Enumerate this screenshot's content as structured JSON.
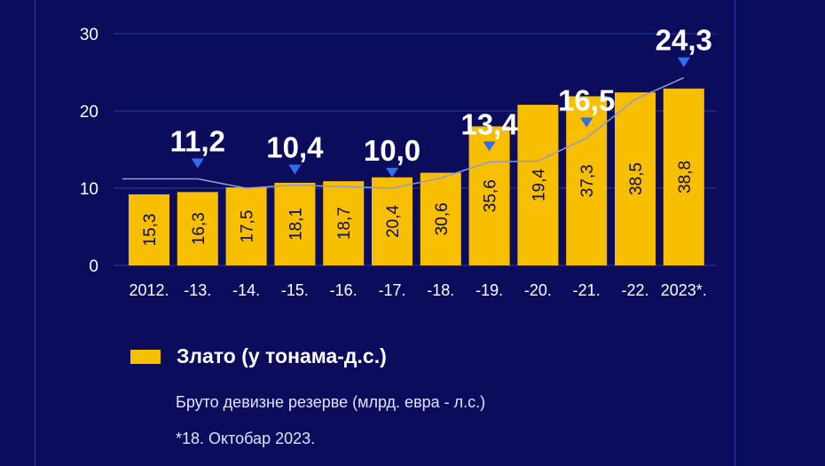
{
  "colors": {
    "background": "#0b0c5c",
    "bar": "#f8be00",
    "grid": "#2a3aa8",
    "line": "#8f9ad6",
    "marker": "#2f6cf0",
    "text": "#ffffff"
  },
  "chart_data": {
    "type": "bar",
    "categories": [
      "2012.",
      "-13.",
      "-14.",
      "-15.",
      "-16.",
      "-17.",
      "-18.",
      "-19.",
      "-20.",
      "-21.",
      "-22.",
      "2023*."
    ],
    "series": [
      {
        "name": "Злато (у тонама-д.с.)",
        "type": "bar",
        "axis": "right",
        "values": [
          15.3,
          16.3,
          17.5,
          18.1,
          18.7,
          20.4,
          30.6,
          35.6,
          19.4,
          37.3,
          38.5,
          38.8
        ],
        "labels": [
          "15,3",
          "16,3",
          "17,5",
          "18,1",
          "18,7",
          "20,4",
          "30,6",
          "35,6",
          "19,4",
          "37,3",
          "38,5",
          "38,8"
        ]
      },
      {
        "name": "Бруто девизне резерве (млрд. евра - л.с.)",
        "type": "line",
        "axis": "left",
        "values": [
          11.2,
          11.2,
          10.0,
          10.4,
          10.2,
          10.0,
          11.3,
          13.4,
          13.5,
          16.5,
          21.5,
          24.3
        ],
        "callouts": [
          {
            "index": 1,
            "label": "11,2"
          },
          {
            "index": 3,
            "label": "10,4"
          },
          {
            "index": 5,
            "label": "10,0"
          },
          {
            "index": 7,
            "label": "13,4"
          },
          {
            "index": 9,
            "label": "16,5"
          },
          {
            "index": 11,
            "label": "24,3"
          }
        ]
      }
    ],
    "bar_heights_left_axis": [
      9.2,
      9.5,
      10.1,
      10.7,
      10.9,
      11.4,
      12.0,
      18.0,
      20.8,
      21.9,
      22.4,
      22.9
    ],
    "y_ticks": [
      "0",
      "10",
      "20",
      "30"
    ],
    "ylim": [
      0,
      30
    ],
    "grid": true
  },
  "legend": {
    "bar_label": "Злато (у тонама-д.с.)"
  },
  "notes": {
    "line_series": "Бруто девизне резерве (млрд. евра - л.с.)",
    "footnote": "*18. Октобар 2023."
  }
}
